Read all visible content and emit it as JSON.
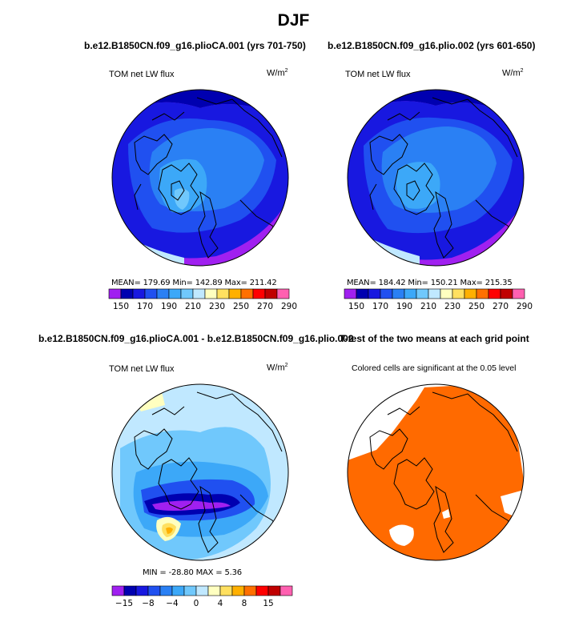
{
  "figure": {
    "title": "DJF"
  },
  "panels": [
    {
      "title": "b.e12.B1850CN.f09_g16.plioCA.001 (yrs 701-750)",
      "variable": "TOM net LW flux",
      "units": "W/m",
      "units_sup": "2",
      "stats": "MEAN= 179.69   Min= 142.89   Max= 211.42"
    },
    {
      "title": "b.e12.B1850CN.f09_g16.plio.002 (yrs 601-650)",
      "variable": "TOM net LW flux",
      "units": "W/m",
      "units_sup": "2",
      "stats": "MEAN= 184.42   Min= 150.21   Max= 215.35"
    },
    {
      "title": "b.e12.B1850CN.f09_g16.plioCA.001 - b.e12.B1850CN.f09_g16.plio.002",
      "variable": "TOM net LW flux",
      "units": "W/m",
      "units_sup": "2",
      "stats": "MIN = -28.80  MAX =    5.36"
    },
    {
      "title": "T-test of the two means at each grid point",
      "note": "Colored cells are significant at the 0.05 level"
    }
  ],
  "chart_data": [
    {
      "type": "heatmap",
      "projection": "north-polar-stereographic",
      "title": "b.e12.B1850CN.f09_g16.plioCA.001 (yrs 701-750)",
      "variable": "TOM net LW flux",
      "units": "W/m2",
      "mean": 179.69,
      "min": 142.89,
      "max": 211.42,
      "colorbar": {
        "levels": [
          150,
          160,
          170,
          180,
          190,
          200,
          210,
          220,
          230,
          240,
          250,
          260,
          270,
          280,
          290
        ],
        "tick_labels": [
          "150",
          "170",
          "190",
          "210",
          "230",
          "250",
          "270",
          "290"
        ],
        "colors": [
          "#a020f0",
          "#0000b0",
          "#1818e0",
          "#2050f0",
          "#2a80f4",
          "#3ca8f8",
          "#70c8fc",
          "#c0e8ff",
          "#ffffc0",
          "#ffe060",
          "#ffb000",
          "#ff7000",
          "#ff0000",
          "#c00000",
          "#ff60b0"
        ]
      }
    },
    {
      "type": "heatmap",
      "projection": "north-polar-stereographic",
      "title": "b.e12.B1850CN.f09_g16.plio.002 (yrs 601-650)",
      "variable": "TOM net LW flux",
      "units": "W/m2",
      "mean": 184.42,
      "min": 150.21,
      "max": 215.35,
      "colorbar": {
        "levels": [
          150,
          160,
          170,
          180,
          190,
          200,
          210,
          220,
          230,
          240,
          250,
          260,
          270,
          280,
          290
        ],
        "tick_labels": [
          "150",
          "170",
          "190",
          "210",
          "230",
          "250",
          "270",
          "290"
        ],
        "colors": [
          "#a020f0",
          "#0000b0",
          "#1818e0",
          "#2050f0",
          "#2a80f4",
          "#3ca8f8",
          "#70c8fc",
          "#c0e8ff",
          "#ffffc0",
          "#ffe060",
          "#ffb000",
          "#ff7000",
          "#ff0000",
          "#c00000",
          "#ff60b0"
        ]
      }
    },
    {
      "type": "heatmap",
      "projection": "north-polar-stereographic",
      "title": "b.e12.B1850CN.f09_g16.plioCA.001 - b.e12.B1850CN.f09_g16.plio.002",
      "variable": "TOM net LW flux",
      "units": "W/m2",
      "min": -28.8,
      "max": 5.36,
      "colorbar": {
        "levels": [
          -20,
          -15,
          -10,
          -8,
          -6,
          -4,
          -2,
          0,
          2,
          4,
          6,
          8,
          10,
          15,
          20
        ],
        "tick_labels": [
          "-15",
          "-8",
          "-4",
          "0",
          "4",
          "8",
          "15"
        ],
        "colors": [
          "#a020f0",
          "#0000b0",
          "#1818e0",
          "#2050f0",
          "#2a80f4",
          "#3ca8f8",
          "#70c8fc",
          "#c0e8ff",
          "#ffffc0",
          "#ffe060",
          "#ffb000",
          "#ff7000",
          "#ff0000",
          "#c00000",
          "#ff60b0"
        ]
      }
    },
    {
      "type": "heatmap",
      "projection": "north-polar-stereographic",
      "title": "T-test of the two means at each grid point",
      "note": "Colored cells are significant at the 0.05 level",
      "significance_level": 0.05,
      "fill_color": "#ff6a00"
    }
  ]
}
